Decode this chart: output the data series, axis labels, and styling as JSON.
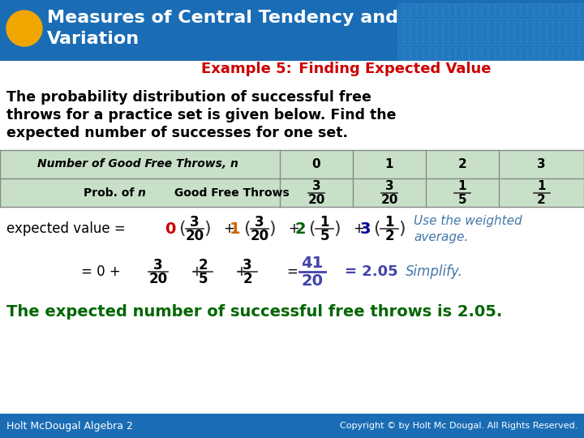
{
  "header_title": "Measures of Central Tendency and\nVariation",
  "header_bg": "#1a6db5",
  "header_text_color": "#ffffff",
  "circle_color": "#f0a500",
  "example_label": "Example 5:",
  "example_label_color": "#cc0000",
  "example_title": " Finding Expected Value",
  "example_title_color": "#cc0000",
  "body_text": "The probability distribution of successful free\nthrows for a practice set is given below. Find the\nexpected number of successes for one set.",
  "body_text_color": "#000000",
  "table_header_bg": "#c8e0c8",
  "table_header_text": "#000000",
  "table_col_labels": [
    "0",
    "1",
    "2",
    "3"
  ],
  "table_row1": "Number of Good Free Throws, n",
  "table_row2": "Prob. of n Good Free Throws",
  "table_row2_fracs": [
    [
      "3",
      "20"
    ],
    [
      "3",
      "20"
    ],
    [
      "1",
      "5"
    ],
    [
      "1",
      "2"
    ]
  ],
  "footer_bg": "#1a6db5",
  "footer_left": "Holt McDougal Algebra 2",
  "footer_right": "Copyright © by Holt Mc Dougal. All Rights Reserved.",
  "footer_text_color": "#ffffff",
  "ev_text_color": "#000000",
  "ev_0_color": "#cc0000",
  "ev_1_color": "#cc6600",
  "ev_2_color": "#006600",
  "ev_3_color": "#000099",
  "simplify_color": "#4444aa",
  "note_color": "#4477aa",
  "conclusion_color": "#006600",
  "bg_color": "#ffffff"
}
